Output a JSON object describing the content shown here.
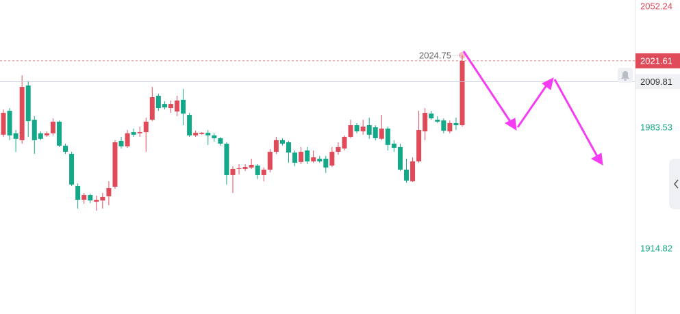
{
  "chart_data": {
    "type": "candlestick",
    "ohlc": [
      [
        1979.7,
        1994.0,
        1978.5,
        1992.1
      ],
      [
        1993.3,
        1994.8,
        1976.6,
        1979.3
      ],
      [
        1980.5,
        1982.4,
        1970.0,
        1977.4
      ],
      [
        1976.6,
        2013.4,
        1974.6,
        2006.8
      ],
      [
        2007.6,
        2010.3,
        1978.5,
        1987.4
      ],
      [
        1988.2,
        1990.2,
        1968.8,
        1976.6
      ],
      [
        1980.5,
        1981.6,
        1976.6,
        1977.4
      ],
      [
        1979.3,
        1981.6,
        1978.5,
        1980.5
      ],
      [
        1980.5,
        1989.0,
        1979.3,
        1987.1
      ],
      [
        1987.1,
        1987.8,
        1972.7,
        1973.5
      ],
      [
        1973.5,
        1974.6,
        1968.8,
        1970.0
      ],
      [
        1968.8,
        1970.0,
        1950.6,
        1951.4
      ],
      [
        1950.6,
        1952.1,
        1937.8,
        1942.8
      ],
      [
        1942.8,
        1946.7,
        1940.5,
        1945.5
      ],
      [
        1945.5,
        1946.3,
        1940.9,
        1942.4
      ],
      [
        1941.7,
        1945.1,
        1936.6,
        1942.8
      ],
      [
        1942.4,
        1946.7,
        1937.8,
        1944.4
      ],
      [
        1944.8,
        1953.3,
        1939.7,
        1949.4
      ],
      [
        1950.2,
        1976.6,
        1949.0,
        1975.4
      ],
      [
        1976.2,
        1978.5,
        1971.9,
        1973.1
      ],
      [
        1973.1,
        1982.4,
        1972.3,
        1980.5
      ],
      [
        1981.2,
        1983.2,
        1978.5,
        1979.7
      ],
      [
        1980.5,
        1984.3,
        1978.5,
        1981.2
      ],
      [
        1981.2,
        1989.4,
        1970.0,
        1987.1
      ],
      [
        1988.2,
        2006.8,
        1987.4,
        2001.0
      ],
      [
        2001.8,
        2003.0,
        1993.3,
        1994.8
      ],
      [
        1997.1,
        1998.7,
        1994.0,
        1995.2
      ],
      [
        1994.8,
        1999.1,
        1992.1,
        1997.1
      ],
      [
        1992.9,
        2001.8,
        1990.2,
        1999.1
      ],
      [
        1999.5,
        2005.7,
        1985.1,
        1991.7
      ],
      [
        1990.9,
        1992.1,
        1978.5,
        1979.3
      ],
      [
        1979.3,
        1982.0,
        1978.5,
        1980.8
      ],
      [
        1980.1,
        1981.2,
        1979.7,
        1980.8
      ],
      [
        1980.8,
        1982.4,
        1973.9,
        1979.3
      ],
      [
        1979.3,
        1980.5,
        1975.8,
        1977.7
      ],
      [
        1977.7,
        1978.5,
        1973.5,
        1974.6
      ],
      [
        1974.6,
        1975.4,
        1951.4,
        1956.8
      ],
      [
        1956.8,
        1961.8,
        1946.7,
        1960.3
      ],
      [
        1960.3,
        1963.0,
        1957.2,
        1960.7
      ],
      [
        1960.3,
        1963.0,
        1959.1,
        1961.4
      ],
      [
        1961.1,
        1966.1,
        1960.3,
        1962.6
      ],
      [
        1962.2,
        1963.0,
        1954.5,
        1956.8
      ],
      [
        1956.8,
        1961.1,
        1953.3,
        1959.9
      ],
      [
        1959.9,
        1971.5,
        1958.4,
        1970.0
      ],
      [
        1970.0,
        1978.5,
        1968.8,
        1976.6
      ],
      [
        1976.6,
        1977.7,
        1973.5,
        1974.6
      ],
      [
        1975.4,
        1976.2,
        1963.8,
        1969.6
      ],
      [
        1969.6,
        1970.8,
        1961.8,
        1963.8
      ],
      [
        1964.2,
        1972.7,
        1963.0,
        1970.0
      ],
      [
        1970.8,
        1972.7,
        1963.0,
        1964.6
      ],
      [
        1964.6,
        1970.8,
        1963.8,
        1966.9
      ],
      [
        1966.1,
        1967.7,
        1963.8,
        1964.6
      ],
      [
        1966.1,
        1967.7,
        1958.0,
        1961.1
      ],
      [
        1962.2,
        1972.7,
        1961.4,
        1970.0
      ],
      [
        1970.0,
        1975.4,
        1968.4,
        1972.7
      ],
      [
        1971.9,
        1979.3,
        1970.8,
        1978.5
      ],
      [
        1978.5,
        1988.2,
        1977.7,
        1985.1
      ],
      [
        1985.1,
        1986.3,
        1980.5,
        1981.6
      ],
      [
        1981.6,
        1988.2,
        1979.7,
        1984.3
      ],
      [
        1985.1,
        1989.4,
        1977.4,
        1979.7
      ],
      [
        1983.9,
        1985.1,
        1976.6,
        1977.7
      ],
      [
        1977.4,
        1990.9,
        1976.6,
        1983.2
      ],
      [
        1983.2,
        1984.3,
        1970.8,
        1973.9
      ],
      [
        1974.6,
        1976.6,
        1970.0,
        1972.3
      ],
      [
        1972.7,
        1974.6,
        1959.1,
        1959.9
      ],
      [
        1959.9,
        1966.1,
        1952.5,
        1953.7
      ],
      [
        1953.3,
        1966.9,
        1952.9,
        1964.6
      ],
      [
        1964.6,
        1993.3,
        1963.8,
        1982.4
      ],
      [
        1981.6,
        1994.8,
        1976.6,
        1992.1
      ],
      [
        1991.7,
        1993.3,
        1988.2,
        1989.0
      ],
      [
        1988.2,
        1990.2,
        1986.3,
        1987.1
      ],
      [
        1987.8,
        1989.0,
        1980.5,
        1982.0
      ],
      [
        1981.6,
        1987.8,
        1980.5,
        1986.3
      ],
      [
        1986.3,
        1989.4,
        1982.4,
        1985.1
      ],
      [
        1985.1,
        2024.75,
        1984.3,
        2021.61
      ]
    ],
    "up_color": "#e04b5a",
    "down_color": "#13a887",
    "ylim": [
      1878.0,
      2056.12
    ],
    "yticks": [
      1914.82,
      1983.53,
      2052.24
    ],
    "last_price": 2021.61,
    "order_price": 2009.81
  }
}
